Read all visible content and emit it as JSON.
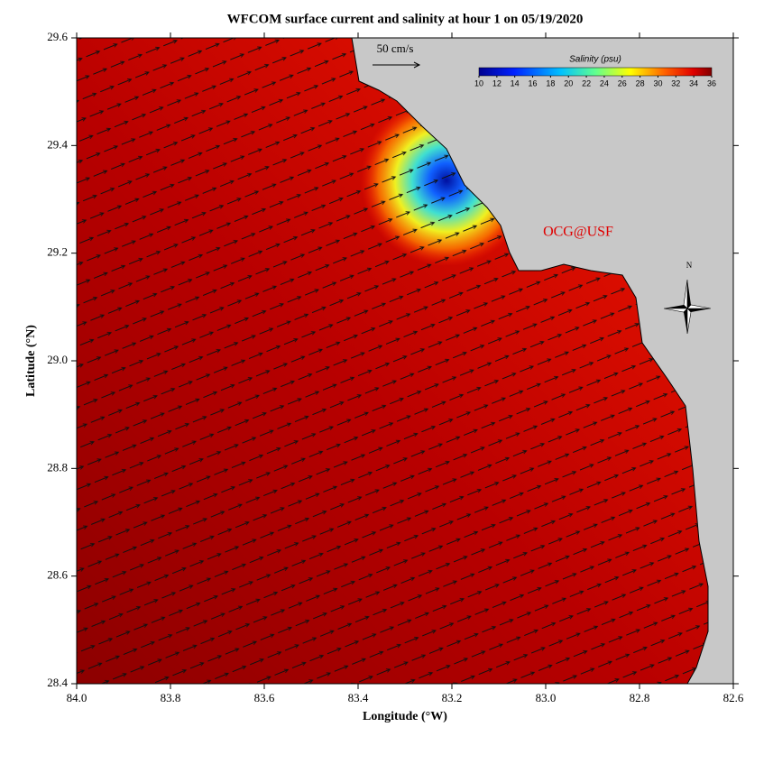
{
  "map": {
    "title": "WFCOM surface current and salinity at hour 1 on 05/19/2020",
    "xlabel": "Longitude (°W)",
    "ylabel": "Latitude (°N)",
    "xlim": [
      84.0,
      82.6
    ],
    "ylim": [
      28.4,
      29.6
    ],
    "xticks": [
      {
        "value": 84.0,
        "label": "84.0"
      },
      {
        "value": 83.8,
        "label": "83.8"
      },
      {
        "value": 83.6,
        "label": "83.6"
      },
      {
        "value": 83.4,
        "label": "83.4"
      },
      {
        "value": 83.2,
        "label": "83.2"
      },
      {
        "value": 83.0,
        "label": "83.0"
      },
      {
        "value": 82.8,
        "label": "82.8"
      },
      {
        "value": 82.6,
        "label": "82.6"
      }
    ],
    "yticks": [
      {
        "value": 28.4,
        "label": "28.4"
      },
      {
        "value": 28.6,
        "label": "28.6"
      },
      {
        "value": 28.8,
        "label": "28.8"
      },
      {
        "value": 29.0,
        "label": "29.0"
      },
      {
        "value": 29.2,
        "label": "29.2"
      },
      {
        "value": 29.4,
        "label": "29.4"
      },
      {
        "value": 29.6,
        "label": "29.6"
      }
    ],
    "scale_label": "50 cm/s",
    "colorbar": {
      "title": "Salinity (psu)",
      "clim": [
        10,
        36
      ],
      "ticks": [
        10,
        12,
        14,
        16,
        18,
        20,
        22,
        24,
        26,
        28,
        30,
        32,
        34,
        36
      ]
    },
    "credit": "OCG@USF",
    "north_label": "N"
  }
}
